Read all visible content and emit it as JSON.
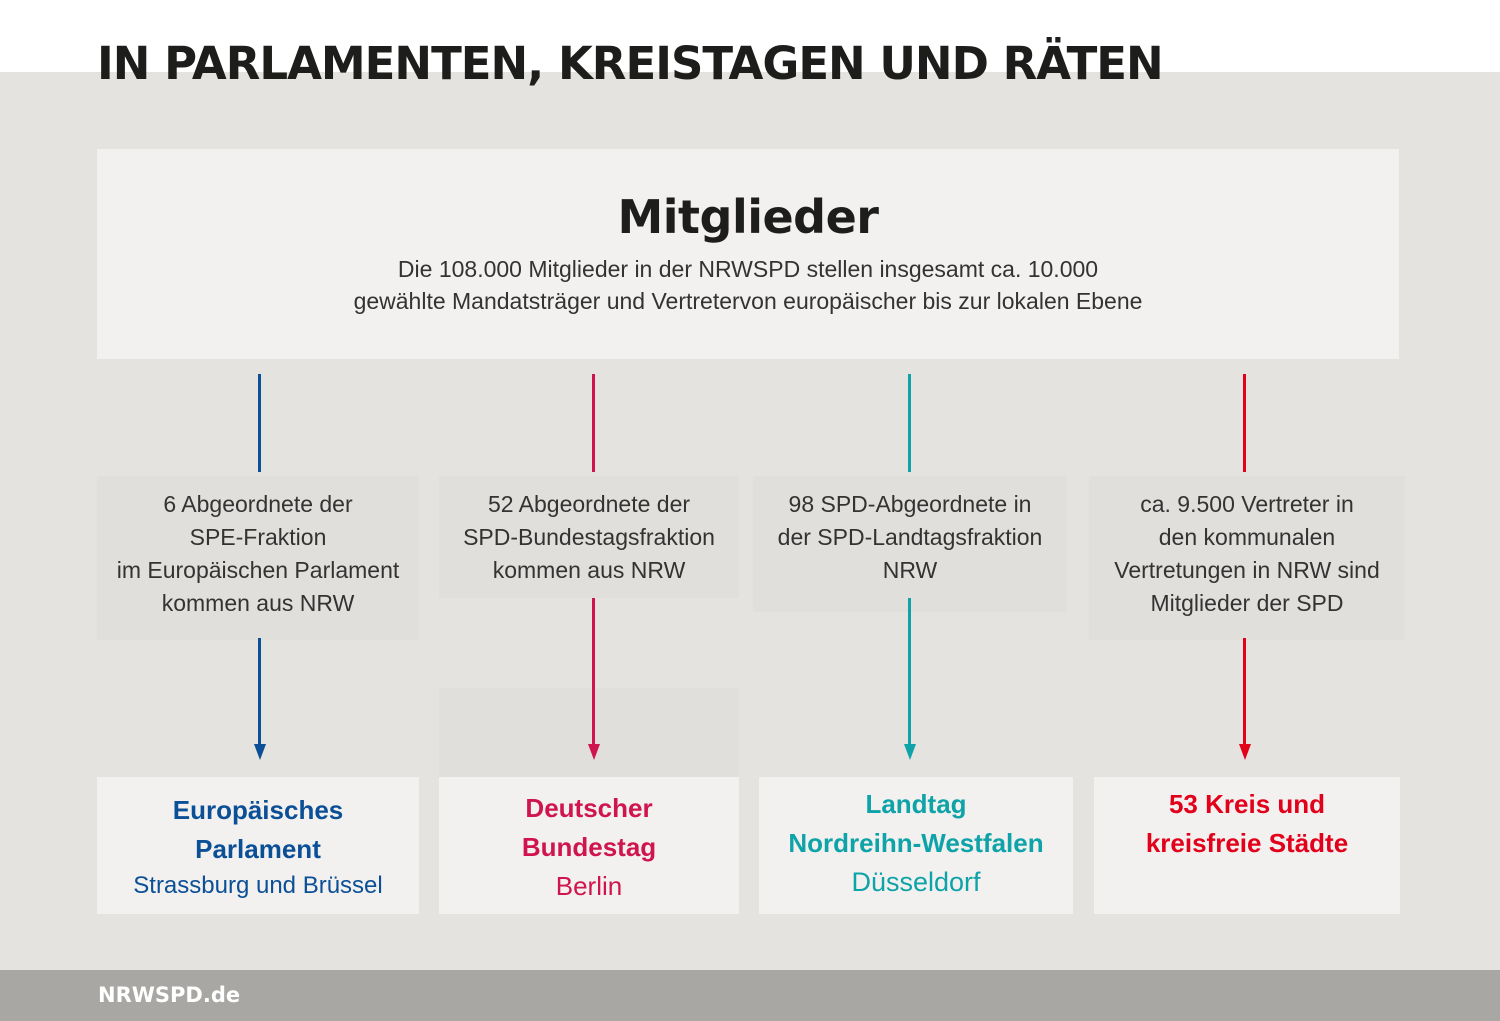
{
  "title": "IN PARLAMENTEN, KREISTAGEN UND RÄTEN",
  "members": {
    "heading": "Mitglieder",
    "lines": [
      "Die 108.000 Mitglieder in der NRWSPD stellen insgesamt ca. 10.000",
      "gewählte Mandatsträger und Vertretervon europäischer bis zur lokalen Ebene"
    ]
  },
  "columns": [
    {
      "color": "#0b4f96",
      "description": [
        "6 Abgeordnete der",
        "SPE-Fraktion",
        "im Europäischen Parlament",
        "kommen aus NRW"
      ],
      "name": [
        "Europäisches",
        "Parlament"
      ],
      "city": "Strassburg und Brüssel"
    },
    {
      "color": "#d0144f",
      "description": [
        "52 Abgeordnete der",
        "SPD-Bundestagsfraktion",
        "kommen aus NRW"
      ],
      "name": [
        "Deutscher",
        "Bundestag"
      ],
      "city": "Berlin"
    },
    {
      "color": "#0ea3a8",
      "description": [
        "98 SPD-Abgeordnete in",
        "der SPD-Landtagsfraktion",
        "NRW"
      ],
      "name": [
        "Landtag",
        "Nordreihn-Westfalen"
      ],
      "city": "Düsseldorf"
    },
    {
      "color": "#e2001a",
      "description": [
        "ca. 9.500 Vertreter in",
        "den kommunalen",
        "Vertretungen in NRW sind",
        "Mitglieder der SPD"
      ],
      "name": [
        "53 Kreis und",
        "kreisfreie Städte"
      ],
      "city": ""
    }
  ],
  "footer": "NRWSPD.de"
}
